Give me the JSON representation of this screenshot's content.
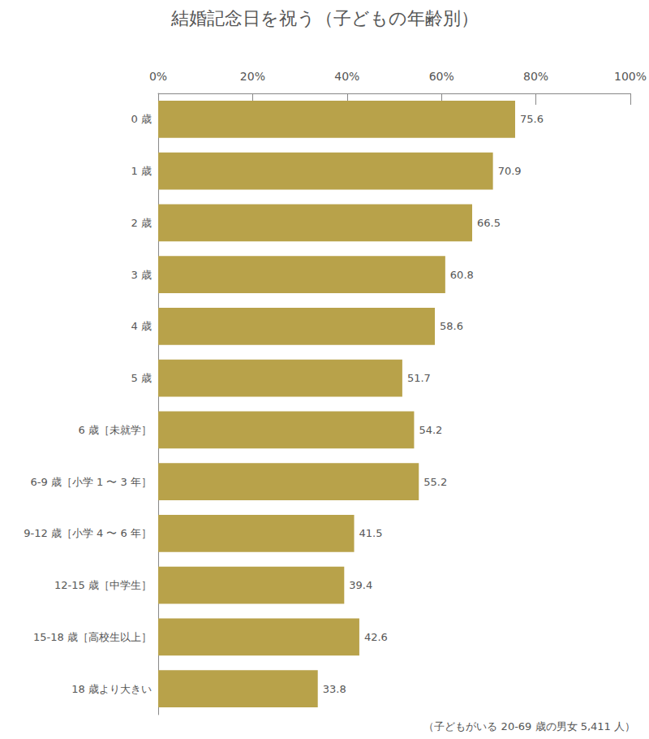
{
  "chart_data": {
    "type": "bar",
    "title": "結婚記念日を祝う（子どもの年齢別）",
    "annotation": "（子どもがいる 20-69 歳の男女 5,411 人）",
    "orientation": "horizontal",
    "categories": [
      "0 歳",
      "1 歳",
      "2 歳",
      "3 歳",
      "4 歳",
      "5 歳",
      "6 歳［未就学］",
      "6-9 歳［小学 1 〜 3 年］",
      "9-12 歳［小学 4 〜 6 年］",
      "12-15 歳［中学生］",
      "15-18 歳［高校生以上］",
      "18 歳より大きい"
    ],
    "values": [
      75.6,
      70.9,
      66.5,
      60.8,
      58.6,
      51.7,
      54.2,
      55.2,
      41.5,
      39.4,
      42.6,
      33.8
    ],
    "color": "#b8a24a",
    "xlim": [
      0,
      100
    ],
    "xticks": [
      {
        "value": 0,
        "label": "0%"
      },
      {
        "value": 20,
        "label": "20%"
      },
      {
        "value": 40,
        "label": "40%"
      },
      {
        "value": 60,
        "label": "60%"
      },
      {
        "value": 80,
        "label": "80%"
      },
      {
        "value": 100,
        "label": "100%"
      }
    ],
    "grid": false,
    "data_labels": true
  }
}
